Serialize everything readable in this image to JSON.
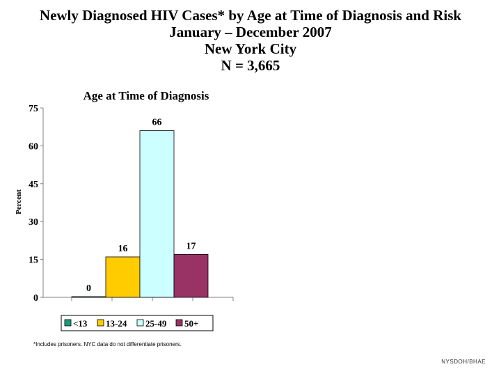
{
  "title_lines": [
    "Newly Diagnosed HIV Cases* by Age at Time of Diagnosis and Risk",
    "January – December 2007",
    "New York City",
    "N = 3,665"
  ],
  "chart_data": {
    "type": "bar",
    "title": "Age at Time of Diagnosis",
    "ylabel": "Percent",
    "xlabel": "",
    "ylim": [
      0,
      75
    ],
    "yticks": [
      0,
      15,
      30,
      45,
      60,
      75
    ],
    "categories": [
      "<13",
      "13-24",
      "25-49",
      "50+"
    ],
    "values": [
      0,
      16,
      66,
      17
    ],
    "data_labels": [
      "0",
      "16",
      "66",
      "17"
    ],
    "colors": [
      "#1a9b7a",
      "#ffcc00",
      "#ccffff",
      "#993366"
    ],
    "legend_position": "bottom",
    "grid": false
  },
  "footnote": "*Includes prisoners.  NYC data do not differentiate prisoners.",
  "source": "NYSDOH/BHAE"
}
